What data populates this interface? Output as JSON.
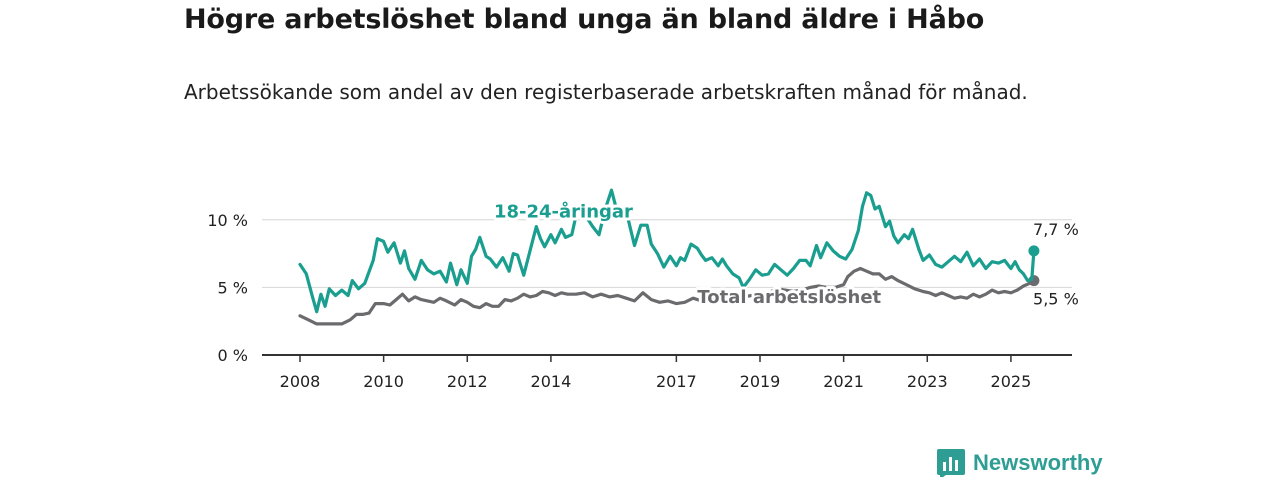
{
  "title": "Högre arbetslöshet bland unga än bland äldre i Håbo",
  "subtitle": "Arbetssökande som andel av den registerbaserade arbetskraften månad för månad.",
  "brand": {
    "name": "Newsworthy",
    "icon": "newsworthy-logo-icon",
    "color": "#2e9e94"
  },
  "chart_data": {
    "type": "line",
    "title": "Högre arbetslöshet bland unga än bland äldre i Håbo",
    "xlabel": "",
    "ylabel": "",
    "xlim": [
      2008,
      2025.6
    ],
    "ylim": [
      0,
      12.5
    ],
    "x_ticks": [
      2008,
      2010,
      2012,
      2014,
      2017,
      2019,
      2021,
      2023,
      2025
    ],
    "x_tick_labels": [
      "2008",
      "2010",
      "2012",
      "2014",
      "2017",
      "2019",
      "2021",
      "2023",
      "2025"
    ],
    "y_ticks": [
      0,
      5,
      10
    ],
    "y_tick_labels": [
      "0 %",
      "5 %",
      "10 %"
    ],
    "grid": "horizontal",
    "legend": "inline-labels",
    "series": [
      {
        "name": "18-24-åringar",
        "color": "#1a9e8f",
        "end_label": "7,7 %",
        "points": [
          [
            2008.0,
            6.7
          ],
          [
            2008.15,
            6.0
          ],
          [
            2008.3,
            4.3
          ],
          [
            2008.4,
            3.2
          ],
          [
            2008.5,
            4.5
          ],
          [
            2008.6,
            3.6
          ],
          [
            2008.7,
            4.9
          ],
          [
            2008.85,
            4.4
          ],
          [
            2009.0,
            4.8
          ],
          [
            2009.15,
            4.4
          ],
          [
            2009.25,
            5.5
          ],
          [
            2009.4,
            4.9
          ],
          [
            2009.55,
            5.3
          ],
          [
            2009.75,
            7.0
          ],
          [
            2009.85,
            8.6
          ],
          [
            2010.0,
            8.4
          ],
          [
            2010.1,
            7.6
          ],
          [
            2010.25,
            8.3
          ],
          [
            2010.4,
            6.8
          ],
          [
            2010.5,
            7.7
          ],
          [
            2010.6,
            6.4
          ],
          [
            2010.75,
            5.6
          ],
          [
            2010.9,
            7.0
          ],
          [
            2011.05,
            6.3
          ],
          [
            2011.2,
            6.0
          ],
          [
            2011.35,
            6.2
          ],
          [
            2011.5,
            5.4
          ],
          [
            2011.6,
            6.8
          ],
          [
            2011.75,
            5.2
          ],
          [
            2011.85,
            6.3
          ],
          [
            2012.0,
            5.3
          ],
          [
            2012.1,
            7.3
          ],
          [
            2012.2,
            7.8
          ],
          [
            2012.3,
            8.7
          ],
          [
            2012.45,
            7.3
          ],
          [
            2012.55,
            7.1
          ],
          [
            2012.7,
            6.5
          ],
          [
            2012.85,
            7.2
          ],
          [
            2013.0,
            6.2
          ],
          [
            2013.1,
            7.5
          ],
          [
            2013.2,
            7.4
          ],
          [
            2013.35,
            5.9
          ],
          [
            2013.5,
            7.7
          ],
          [
            2013.65,
            9.5
          ],
          [
            2013.75,
            8.6
          ],
          [
            2013.85,
            8.0
          ],
          [
            2014.0,
            8.9
          ],
          [
            2014.1,
            8.3
          ],
          [
            2014.25,
            9.3
          ],
          [
            2014.35,
            8.7
          ],
          [
            2014.5,
            8.9
          ],
          [
            2014.6,
            10.3
          ],
          [
            2014.75,
            11.0
          ],
          [
            2014.85,
            10.2
          ],
          [
            2015.0,
            9.5
          ],
          [
            2015.15,
            8.9
          ],
          [
            2015.3,
            10.8
          ],
          [
            2015.45,
            12.2
          ],
          [
            2015.55,
            11.0
          ],
          [
            2015.7,
            10.5
          ],
          [
            2015.85,
            10.0
          ],
          [
            2016.0,
            8.1
          ],
          [
            2016.15,
            9.6
          ],
          [
            2016.3,
            9.6
          ],
          [
            2016.4,
            8.2
          ],
          [
            2016.55,
            7.5
          ],
          [
            2016.7,
            6.5
          ],
          [
            2016.85,
            7.3
          ],
          [
            2017.0,
            6.6
          ],
          [
            2017.1,
            7.2
          ],
          [
            2017.2,
            7.0
          ],
          [
            2017.35,
            8.2
          ],
          [
            2017.5,
            7.9
          ],
          [
            2017.6,
            7.4
          ],
          [
            2017.7,
            7.0
          ],
          [
            2017.85,
            7.2
          ],
          [
            2018.0,
            6.6
          ],
          [
            2018.1,
            7.1
          ],
          [
            2018.2,
            6.6
          ],
          [
            2018.35,
            6.0
          ],
          [
            2018.5,
            5.7
          ],
          [
            2018.6,
            5.0
          ],
          [
            2018.75,
            5.6
          ],
          [
            2018.9,
            6.3
          ],
          [
            2019.05,
            5.9
          ],
          [
            2019.2,
            6.0
          ],
          [
            2019.35,
            6.7
          ],
          [
            2019.5,
            6.3
          ],
          [
            2019.65,
            5.9
          ],
          [
            2019.8,
            6.4
          ],
          [
            2019.95,
            7.0
          ],
          [
            2020.1,
            7.0
          ],
          [
            2020.2,
            6.6
          ],
          [
            2020.35,
            8.1
          ],
          [
            2020.45,
            7.2
          ],
          [
            2020.6,
            8.3
          ],
          [
            2020.75,
            7.7
          ],
          [
            2020.9,
            7.3
          ],
          [
            2021.05,
            7.1
          ],
          [
            2021.2,
            7.8
          ],
          [
            2021.35,
            9.2
          ],
          [
            2021.45,
            11.0
          ],
          [
            2021.55,
            12.0
          ],
          [
            2021.65,
            11.8
          ],
          [
            2021.75,
            10.8
          ],
          [
            2021.85,
            11.0
          ],
          [
            2022.0,
            9.5
          ],
          [
            2022.1,
            9.9
          ],
          [
            2022.2,
            8.8
          ],
          [
            2022.3,
            8.3
          ],
          [
            2022.45,
            8.9
          ],
          [
            2022.55,
            8.6
          ],
          [
            2022.65,
            9.3
          ],
          [
            2022.8,
            7.8
          ],
          [
            2022.9,
            7.0
          ],
          [
            2023.05,
            7.4
          ],
          [
            2023.2,
            6.7
          ],
          [
            2023.35,
            6.5
          ],
          [
            2023.5,
            6.9
          ],
          [
            2023.65,
            7.3
          ],
          [
            2023.8,
            6.9
          ],
          [
            2023.95,
            7.6
          ],
          [
            2024.1,
            6.6
          ],
          [
            2024.25,
            7.1
          ],
          [
            2024.4,
            6.4
          ],
          [
            2024.55,
            6.9
          ],
          [
            2024.7,
            6.8
          ],
          [
            2024.85,
            7.0
          ],
          [
            2025.0,
            6.4
          ],
          [
            2025.1,
            6.9
          ],
          [
            2025.2,
            6.3
          ],
          [
            2025.3,
            6.0
          ],
          [
            2025.4,
            5.5
          ],
          [
            2025.5,
            5.6
          ],
          [
            2025.55,
            7.7
          ]
        ]
      },
      {
        "name": "Total arbetslöshet",
        "color": "#6b6b6e",
        "end_label": "5,5 %",
        "points": [
          [
            2008.0,
            2.9
          ],
          [
            2008.2,
            2.6
          ],
          [
            2008.4,
            2.3
          ],
          [
            2008.6,
            2.3
          ],
          [
            2008.8,
            2.3
          ],
          [
            2009.0,
            2.3
          ],
          [
            2009.2,
            2.6
          ],
          [
            2009.35,
            3.0
          ],
          [
            2009.5,
            3.0
          ],
          [
            2009.65,
            3.1
          ],
          [
            2009.8,
            3.8
          ],
          [
            2010.0,
            3.8
          ],
          [
            2010.15,
            3.7
          ],
          [
            2010.3,
            4.1
          ],
          [
            2010.45,
            4.5
          ],
          [
            2010.6,
            4.0
          ],
          [
            2010.75,
            4.3
          ],
          [
            2010.9,
            4.1
          ],
          [
            2011.05,
            4.0
          ],
          [
            2011.2,
            3.9
          ],
          [
            2011.35,
            4.2
          ],
          [
            2011.5,
            4.0
          ],
          [
            2011.7,
            3.7
          ],
          [
            2011.85,
            4.1
          ],
          [
            2012.0,
            3.9
          ],
          [
            2012.15,
            3.6
          ],
          [
            2012.3,
            3.5
          ],
          [
            2012.45,
            3.8
          ],
          [
            2012.6,
            3.6
          ],
          [
            2012.75,
            3.6
          ],
          [
            2012.9,
            4.1
          ],
          [
            2013.05,
            4.0
          ],
          [
            2013.2,
            4.2
          ],
          [
            2013.35,
            4.5
          ],
          [
            2013.5,
            4.3
          ],
          [
            2013.65,
            4.4
          ],
          [
            2013.8,
            4.7
          ],
          [
            2013.95,
            4.6
          ],
          [
            2014.1,
            4.4
          ],
          [
            2014.25,
            4.6
          ],
          [
            2014.4,
            4.5
          ],
          [
            2014.6,
            4.5
          ],
          [
            2014.8,
            4.6
          ],
          [
            2015.0,
            4.3
          ],
          [
            2015.2,
            4.5
          ],
          [
            2015.4,
            4.3
          ],
          [
            2015.6,
            4.4
          ],
          [
            2015.8,
            4.2
          ],
          [
            2016.0,
            4.0
          ],
          [
            2016.2,
            4.6
          ],
          [
            2016.4,
            4.1
          ],
          [
            2016.6,
            3.9
          ],
          [
            2016.8,
            4.0
          ],
          [
            2017.0,
            3.8
          ],
          [
            2017.2,
            3.9
          ],
          [
            2017.4,
            4.2
          ],
          [
            2017.6,
            4.0
          ],
          [
            2017.8,
            4.1
          ],
          [
            2018.0,
            4.2
          ],
          [
            2018.2,
            4.2
          ],
          [
            2018.4,
            4.3
          ],
          [
            2018.6,
            4.3
          ],
          [
            2018.8,
            4.4
          ],
          [
            2019.0,
            4.6
          ],
          [
            2019.2,
            4.6
          ],
          [
            2019.4,
            4.9
          ],
          [
            2019.6,
            4.8
          ],
          [
            2019.8,
            4.7
          ],
          [
            2020.0,
            4.8
          ],
          [
            2020.2,
            5.0
          ],
          [
            2020.4,
            5.1
          ],
          [
            2020.6,
            5.0
          ],
          [
            2020.8,
            5.0
          ],
          [
            2021.0,
            5.2
          ],
          [
            2021.1,
            5.8
          ],
          [
            2021.25,
            6.2
          ],
          [
            2021.4,
            6.4
          ],
          [
            2021.55,
            6.2
          ],
          [
            2021.7,
            6.0
          ],
          [
            2021.85,
            6.0
          ],
          [
            2022.0,
            5.6
          ],
          [
            2022.15,
            5.8
          ],
          [
            2022.3,
            5.5
          ],
          [
            2022.5,
            5.2
          ],
          [
            2022.7,
            4.9
          ],
          [
            2022.9,
            4.7
          ],
          [
            2023.05,
            4.6
          ],
          [
            2023.2,
            4.4
          ],
          [
            2023.35,
            4.6
          ],
          [
            2023.5,
            4.4
          ],
          [
            2023.65,
            4.2
          ],
          [
            2023.8,
            4.3
          ],
          [
            2023.95,
            4.2
          ],
          [
            2024.1,
            4.5
          ],
          [
            2024.25,
            4.3
          ],
          [
            2024.4,
            4.5
          ],
          [
            2024.55,
            4.8
          ],
          [
            2024.7,
            4.6
          ],
          [
            2024.85,
            4.7
          ],
          [
            2025.0,
            4.6
          ],
          [
            2025.15,
            4.8
          ],
          [
            2025.3,
            5.1
          ],
          [
            2025.45,
            5.3
          ],
          [
            2025.55,
            5.5
          ]
        ]
      }
    ],
    "annotations": [
      {
        "text": "18-24-åringar",
        "series": 0,
        "x": 2014.3,
        "y": 10.6
      },
      {
        "text": "Total arbetslöshet",
        "series": 1,
        "x": 2019.7,
        "y": 4.3
      }
    ]
  }
}
